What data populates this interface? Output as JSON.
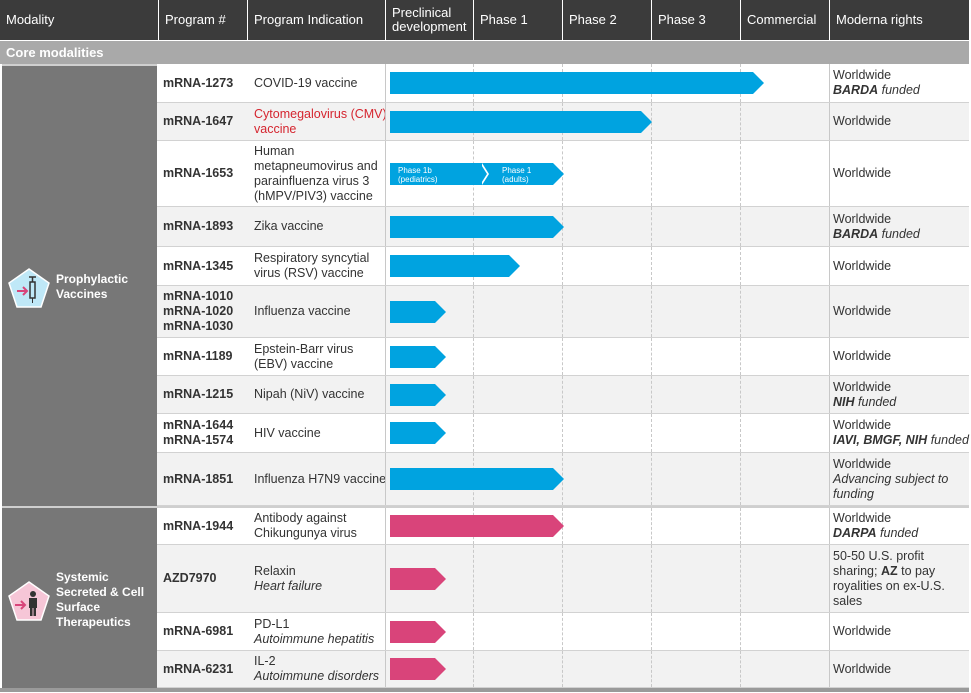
{
  "header": {
    "modality": "Modality",
    "program": "Program #",
    "indication": "Program Indication",
    "preclinical": "Preclinical development",
    "phase1": "Phase 1",
    "phase2": "Phase 2",
    "phase3": "Phase 3",
    "commercial": "Commercial",
    "rights": "Moderna rights"
  },
  "section": "Core modalities",
  "modalities": {
    "vaccines": "Prophylactic Vaccines",
    "therapeutics": "Systemic Secreted & Cell Surface Therapeutics"
  },
  "colors": {
    "vaccine_bar": "#00a3e0",
    "therapeutic_bar": "#d9447a"
  },
  "rows": [
    {
      "program": "mRNA-1273",
      "indication": "COVID-19 vaccine",
      "rights": "Worldwide",
      "rights_bold": "BARDA",
      "rights_note": "funded"
    },
    {
      "program": "mRNA-1647",
      "indication": "Cytomegalovirus (CMV) vaccine",
      "rights": "Worldwide"
    },
    {
      "program": "mRNA-1653",
      "indication": "Human metapneumovirus and parainfluenza virus 3 (hMPV/PIV3) vaccine",
      "rights": "Worldwide",
      "seg1a": "Phase 1b",
      "seg1b": "(pediatrics)",
      "seg2a": "Phase 1",
      "seg2b": "(adults)"
    },
    {
      "program": "mRNA-1893",
      "indication": "Zika vaccine",
      "rights": "Worldwide",
      "rights_bold": "BARDA",
      "rights_note": "funded"
    },
    {
      "program": "mRNA-1345",
      "indication": "Respiratory syncytial virus (RSV) vaccine",
      "rights": "Worldwide"
    },
    {
      "program": "mRNA-1010",
      "program2": "mRNA-1020",
      "program3": "mRNA-1030",
      "indication": "Influenza vaccine",
      "rights": "Worldwide"
    },
    {
      "program": "mRNA-1189",
      "indication": "Epstein-Barr virus (EBV) vaccine",
      "rights": "Worldwide"
    },
    {
      "program": "mRNA-1215",
      "indication": "Nipah (NiV) vaccine",
      "rights": "Worldwide",
      "rights_bold": "NIH",
      "rights_note": "funded"
    },
    {
      "program": "mRNA-1644",
      "program2": "mRNA-1574",
      "indication": "HIV vaccine",
      "rights": "Worldwide",
      "rights_bold": "IAVI, BMGF, NIH",
      "rights_note": "funded"
    },
    {
      "program": "mRNA-1851",
      "indication": "Influenza H7N9 vaccine",
      "rights": "Worldwide",
      "rights_note": "Advancing subject to funding"
    },
    {
      "program": "mRNA-1944",
      "indication": "Antibody against Chikungunya virus",
      "rights": "Worldwide",
      "rights_bold": "DARPA",
      "rights_note": "funded"
    },
    {
      "program": "AZD7970",
      "indication": "Relaxin",
      "indication_sub": "Heart failure",
      "rights": "50-50 U.S. profit sharing;",
      "rights_bold": "AZ",
      "rights_note": "to pay royalities on ex-U.S. sales"
    },
    {
      "program": "mRNA-6981",
      "indication": "PD-L1",
      "indication_sub": "Autoimmune hepatitis",
      "rights": "Worldwide"
    },
    {
      "program": "mRNA-6231",
      "indication": "IL-2",
      "indication_sub": "Autoimmune disorders",
      "rights": "Worldwide"
    }
  ]
}
